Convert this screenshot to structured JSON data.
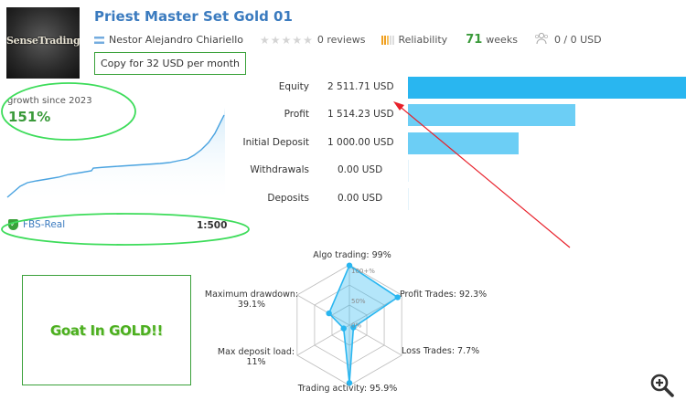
{
  "header": {
    "logo_text": "SenseTrading",
    "title": "Priest Master Set Gold 01",
    "author": "Nestor Alejandro Chiariello",
    "stars_icon": "star-rating-icon",
    "reviews": "0 reviews",
    "reliability_label": "Reliability",
    "weeks_value": "71",
    "weeks_label": "weeks",
    "subscribers": "0 / 0 USD",
    "copy_button": "Copy for 32 USD per month"
  },
  "growth": {
    "label": "growth since 2023",
    "value": "151%",
    "broker": "FBS-Real",
    "leverage": "1:500"
  },
  "financials": [
    {
      "label": "Equity",
      "value": "2 511.71 USD",
      "amount": 2511.71
    },
    {
      "label": "Profit",
      "value": "1 514.23 USD",
      "amount": 1514.23
    },
    {
      "label": "Initial Deposit",
      "value": "1 000.00 USD",
      "amount": 1000.0
    },
    {
      "label": "Withdrawals",
      "value": "0.00 USD",
      "amount": 0
    },
    {
      "label": "Deposits",
      "value": "0.00 USD",
      "amount": 0
    }
  ],
  "banner": {
    "text": "Goat In GOLD!!"
  },
  "radar": {
    "ticks": [
      "100+%",
      "50%",
      "0%"
    ],
    "axes": [
      {
        "label": "Algo trading: 99%",
        "value": 0.99
      },
      {
        "label": "Profit Trades: 92.3%",
        "value": 0.923
      },
      {
        "label": "Loss Trades: 7.7%",
        "value": 0.077
      },
      {
        "label": "Trading activity: 95.9%",
        "value": 0.959
      },
      {
        "label": "Max deposit load:",
        "label2": "11%",
        "value": 0.11
      },
      {
        "label": "Maximum drawdown:",
        "label2": "39.1%",
        "value": 0.391
      }
    ]
  },
  "colors": {
    "title_blue": "#3b7bbf",
    "green": "#3a9a3a",
    "bar_equity": "#29b6f0",
    "bar_other": "#6ccef5",
    "annotation_ellipse": "#3ddc5a",
    "annotation_arrow": "#e8202a",
    "reliability": [
      "#f0a020",
      "#f0a020",
      "#f5c060",
      "#dddddd",
      "#dddddd"
    ]
  },
  "icons": {
    "zoom": "zoom-in-icon",
    "subscribers": "subscribers-icon",
    "flag": "argentina-flag-icon",
    "shield": "shield-check-icon"
  }
}
